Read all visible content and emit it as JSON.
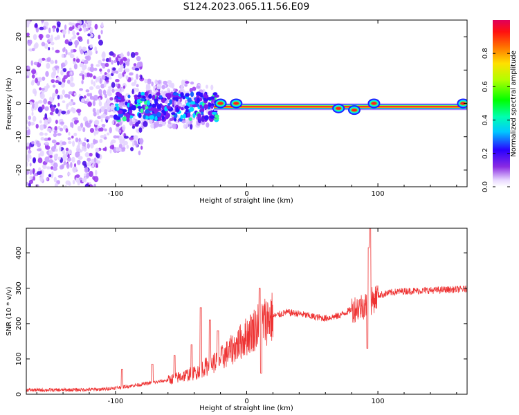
{
  "title": "S124.2023.065.11.56.E09",
  "chart_data": [
    {
      "type": "heatmap",
      "xlabel": "Height of straight line (km)",
      "ylabel": "Frequency (Hz)",
      "xlim": [
        -168,
        168
      ],
      "ylim": [
        -25,
        25
      ],
      "x_ticks": [
        -100,
        0,
        100
      ],
      "y_ticks": [
        -20,
        -10,
        0,
        10,
        20
      ],
      "colorbar": {
        "label": "Normalized spectral amplitude",
        "range": [
          0,
          1
        ],
        "ticks": [
          0.0,
          0.2,
          0.4,
          0.6,
          0.8
        ],
        "colormap": "white-violet-blue-cyan-green-yellow-red"
      },
      "features": {
        "noise_region_x": [
          -168,
          -25
        ],
        "noise_fade_x": [
          -110,
          -40
        ],
        "ridge_freq_hz": -1,
        "ridge_x": [
          -25,
          168
        ],
        "ridge_wiggles": [
          {
            "x": -20,
            "f": 0
          },
          {
            "x": -8,
            "f": 0
          },
          {
            "x": 70,
            "f": -1.5
          },
          {
            "x": 82,
            "f": -2
          },
          {
            "x": 97,
            "f": 0
          },
          {
            "x": 165,
            "f": 0
          }
        ]
      }
    },
    {
      "type": "line",
      "xlabel": "Height of straight line (km)",
      "ylabel": "SNR (10 * v/v)",
      "xlim": [
        -168,
        168
      ],
      "ylim": [
        0,
        470
      ],
      "x_ticks": [
        -100,
        0,
        100
      ],
      "y_ticks": [
        0,
        100,
        200,
        300,
        400
      ],
      "series": [
        {
          "color": "#ee3333",
          "trend_x": [
            -168,
            -140,
            -110,
            -100,
            -80,
            -60,
            -40,
            -20,
            -10,
            0,
            10,
            20,
            30,
            40,
            50,
            60,
            70,
            80,
            90,
            95,
            100,
            110,
            120,
            140,
            168
          ],
          "trend_y": [
            12,
            12,
            14,
            18,
            28,
            40,
            60,
            100,
            130,
            165,
            200,
            220,
            232,
            228,
            220,
            215,
            222,
            240,
            252,
            262,
            280,
            288,
            292,
            294,
            298
          ],
          "spikes": [
            {
              "x": -95,
              "y": 70
            },
            {
              "x": -72,
              "y": 85
            },
            {
              "x": -55,
              "y": 110
            },
            {
              "x": -42,
              "y": 140
            },
            {
              "x": -35,
              "y": 245
            },
            {
              "x": -28,
              "y": 210
            },
            {
              "x": -22,
              "y": 180
            },
            {
              "x": 10,
              "y": 300
            },
            {
              "x": 11,
              "y": 60
            },
            {
              "x": 92,
              "y": 130
            },
            {
              "x": 93,
              "y": 415
            },
            {
              "x": 94,
              "y": 470
            }
          ]
        }
      ]
    }
  ]
}
